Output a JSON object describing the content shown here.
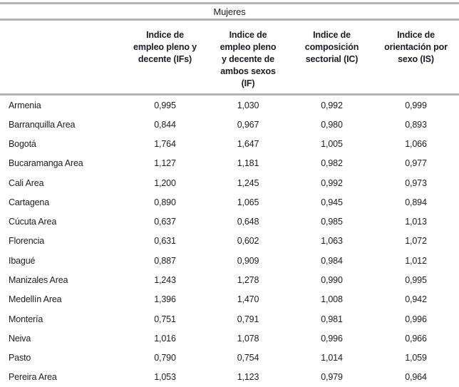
{
  "colors": {
    "rule_gray": "#b4b4b6",
    "text": "#1c1c24",
    "background": "#ffffff"
  },
  "table": {
    "title": "Mujeres",
    "columns": [
      {
        "label": ""
      },
      {
        "label": "Indice de\nempleo pleno y\ndecente (IFs)"
      },
      {
        "label": "Indice de\nempleo pleno\ny decente de\nambos sexos\n(IF)"
      },
      {
        "label": "Indice de\ncomposición\nsectorial (IC)"
      },
      {
        "label": "Indice de\norientación por\nsexo (IS)"
      }
    ],
    "rows": [
      {
        "city": "Armenia",
        "ifs": "0,995",
        "if_both": "1,030",
        "ic": "0,992",
        "is": "0,999"
      },
      {
        "city": "Barranquilla Area",
        "ifs": "0,844",
        "if_both": "0,967",
        "ic": "0,980",
        "is": "0,893"
      },
      {
        "city": "Bogotá",
        "ifs": "1,764",
        "if_both": "1,647",
        "ic": "1,005",
        "is": "1,066"
      },
      {
        "city": "Bucaramanga Area",
        "ifs": "1,127",
        "if_both": "1,181",
        "ic": "0,982",
        "is": "0,977"
      },
      {
        "city": "Cali Area",
        "ifs": "1,200",
        "if_both": "1,245",
        "ic": "0,992",
        "is": "0,973"
      },
      {
        "city": "Cartagena",
        "ifs": "0,890",
        "if_both": "1,065",
        "ic": "0,945",
        "is": "0,894"
      },
      {
        "city": "Cúcuta Area",
        "ifs": "0,637",
        "if_both": "0,648",
        "ic": "0,985",
        "is": "1,013"
      },
      {
        "city": "Florencia",
        "ifs": "0,631",
        "if_both": "0,602",
        "ic": "1,063",
        "is": "1,072"
      },
      {
        "city": "Ibagué",
        "ifs": "0,887",
        "if_both": "0,909",
        "ic": "0,984",
        "is": "1,012"
      },
      {
        "city": "Manizales Area",
        "ifs": "1,243",
        "if_both": "1,278",
        "ic": "0,990",
        "is": "0,995"
      },
      {
        "city": "Medellín Area",
        "ifs": "1,396",
        "if_both": "1,470",
        "ic": "1,008",
        "is": "0,942"
      },
      {
        "city": "Montería",
        "ifs": "0,751",
        "if_both": "0,791",
        "ic": "0,981",
        "is": "0,996"
      },
      {
        "city": "Neiva",
        "ifs": "1,016",
        "if_both": "1,078",
        "ic": "0,996",
        "is": "0,966"
      },
      {
        "city": "Pasto",
        "ifs": "0,790",
        "if_both": "0,754",
        "ic": "1,014",
        "is": "1,059"
      },
      {
        "city": "Pereira Area",
        "ifs": "1,053",
        "if_both": "1,123",
        "ic": "0,979",
        "is": "0,964"
      }
    ]
  }
}
